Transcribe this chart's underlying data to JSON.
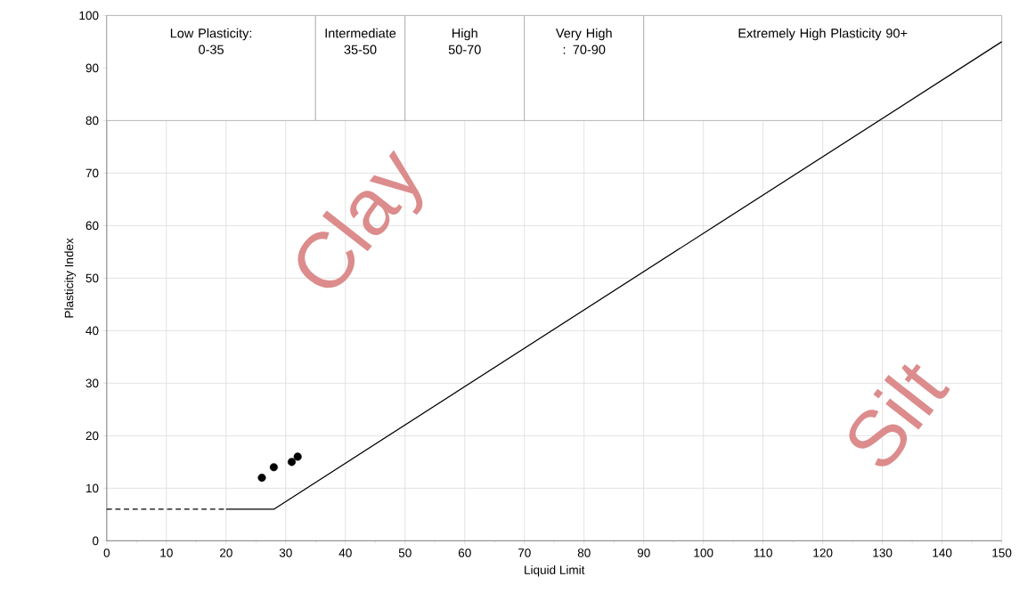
{
  "chart_data": {
    "type": "line",
    "xlabel": "Liquid Limit",
    "ylabel": "Plasticity Index",
    "xlim": [
      0,
      150
    ],
    "ylim": [
      0,
      100
    ],
    "xticks": [
      0,
      10,
      20,
      30,
      40,
      50,
      60,
      70,
      80,
      90,
      100,
      110,
      120,
      130,
      140,
      150
    ],
    "yticks": [
      0,
      10,
      20,
      30,
      40,
      50,
      60,
      70,
      80,
      90,
      100
    ],
    "grid": true,
    "series": [
      {
        "color": "#000000",
        "line_style": "dashed",
        "marker": "none",
        "x": [
          0,
          20
        ],
        "values": [
          6,
          6
        ]
      },
      {
        "color": "#000000",
        "line_style": "solid",
        "marker": "none",
        "x": [
          20,
          28,
          150
        ],
        "values": [
          6,
          6,
          95
        ]
      },
      {
        "type": "scatter",
        "color": "#000000",
        "marker": "circle",
        "x": [
          26,
          28,
          31,
          32
        ],
        "values": [
          12,
          14,
          15,
          16
        ]
      }
    ],
    "bands": [
      {
        "axis": "x",
        "from": 0,
        "to": 35,
        "label": "Low Plasticity: 0-35",
        "color": "#a6a6a6"
      },
      {
        "axis": "x",
        "from": 35,
        "to": 50,
        "label": "Intermediate 35-50",
        "color": "#a6a6a6"
      },
      {
        "axis": "x",
        "from": 50,
        "to": 70,
        "label": "High 50-70",
        "color": "#a6a6a6"
      },
      {
        "axis": "x",
        "from": 70,
        "to": 90,
        "label": "Very High : 70-90",
        "color": "#a6a6a6"
      },
      {
        "axis": "x",
        "from": 90,
        "to": 150,
        "label": "Extremely High Plasticity 90+",
        "color": "#a6a6a6"
      }
    ],
    "annotations": [
      "Clay",
      "Silt"
    ]
  }
}
